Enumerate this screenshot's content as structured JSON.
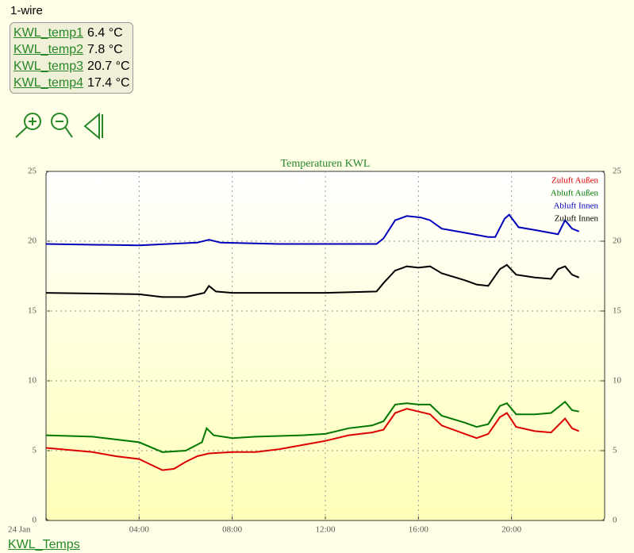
{
  "header": {
    "title": "1-wire"
  },
  "readings": [
    {
      "name": "KWL_temp1",
      "value": "6.4 °C"
    },
    {
      "name": "KWL_temp2",
      "value": "7.8 °C"
    },
    {
      "name": "KWL_temp3",
      "value": "20.7 °C"
    },
    {
      "name": "KWL_temp4",
      "value": "17.4 °C"
    }
  ],
  "footer": {
    "link": "KWL_Temps"
  },
  "chart_data": {
    "type": "line",
    "title": "Temperaturen KWL",
    "xlim": [
      0,
      24
    ],
    "xticks": [
      {
        "value": 0,
        "label": "24 Jan"
      },
      {
        "value": 4,
        "label": "04:00"
      },
      {
        "value": 8,
        "label": "08:00"
      },
      {
        "value": 12,
        "label": "12:00"
      },
      {
        "value": 16,
        "label": "16:00"
      },
      {
        "value": 20,
        "label": "20:00"
      }
    ],
    "ylim": [
      0,
      25
    ],
    "yticks": [
      0,
      5,
      10,
      15,
      20,
      25
    ],
    "y2lim": [
      0,
      25
    ],
    "y2ticks": [
      0,
      5,
      10,
      15,
      20,
      25
    ],
    "grid": true,
    "legend": "top-right",
    "series": [
      {
        "name": "Zuluft Außen",
        "color": "#dd0000",
        "x": [
          0,
          2,
          3,
          4,
          5,
          5.5,
          6,
          6.5,
          7,
          8,
          9,
          10,
          11,
          12,
          13,
          14,
          14.5,
          15,
          15.5,
          16,
          16.5,
          17,
          18,
          18.5,
          19,
          19.5,
          19.8,
          20.2,
          21,
          21.7,
          22.3,
          22.6,
          22.9
        ],
        "values": [
          5.2,
          4.9,
          4.6,
          4.4,
          3.6,
          3.7,
          4.2,
          4.6,
          4.8,
          4.9,
          4.9,
          5.1,
          5.4,
          5.7,
          6.1,
          6.3,
          6.5,
          7.7,
          8.0,
          7.8,
          7.6,
          6.8,
          6.2,
          5.9,
          6.2,
          7.4,
          7.7,
          6.7,
          6.4,
          6.3,
          7.3,
          6.6,
          6.4
        ]
      },
      {
        "name": "Abluft Außen",
        "color": "#007700",
        "x": [
          0,
          2,
          4,
          5,
          6,
          6.7,
          6.9,
          7.2,
          8,
          9,
          11,
          12,
          13,
          14,
          14.5,
          15,
          15.5,
          16,
          16.5,
          17,
          18,
          18.5,
          19,
          19.5,
          19.8,
          20.2,
          21,
          21.7,
          22.3,
          22.6,
          22.9
        ],
        "values": [
          6.1,
          6.0,
          5.6,
          4.9,
          5.0,
          5.6,
          6.6,
          6.1,
          5.9,
          6.0,
          6.1,
          6.2,
          6.6,
          6.8,
          7.1,
          8.3,
          8.4,
          8.3,
          8.3,
          7.5,
          7.0,
          6.7,
          6.9,
          8.2,
          8.4,
          7.6,
          7.6,
          7.7,
          8.5,
          7.9,
          7.8
        ]
      },
      {
        "name": "Abluft Innen",
        "color": "#0000bb",
        "x": [
          0,
          4,
          6.5,
          7,
          7.5,
          10,
          14.2,
          14.5,
          15,
          15.5,
          16.1,
          16.5,
          17,
          18,
          19,
          19.3,
          19.7,
          19.9,
          20.3,
          21,
          22,
          22.3,
          22.6,
          22.9
        ],
        "values": [
          19.8,
          19.7,
          19.9,
          20.1,
          19.9,
          19.8,
          19.8,
          20.2,
          21.5,
          21.8,
          21.7,
          21.5,
          20.9,
          20.6,
          20.3,
          20.3,
          21.6,
          21.9,
          21.0,
          20.8,
          20.5,
          21.5,
          20.9,
          20.7
        ]
      },
      {
        "name": "Zuluft Innen",
        "color": "#000000",
        "x": [
          0,
          4,
          5,
          6,
          6.8,
          7,
          7.3,
          8,
          12,
          14.2,
          14.5,
          15,
          15.5,
          16,
          16.5,
          17,
          18,
          18.5,
          19,
          19.5,
          19.8,
          20.2,
          21,
          21.7,
          22,
          22.3,
          22.6,
          22.9
        ],
        "values": [
          16.3,
          16.2,
          16.0,
          16.0,
          16.3,
          16.8,
          16.4,
          16.3,
          16.3,
          16.4,
          17.0,
          17.9,
          18.2,
          18.1,
          18.2,
          17.7,
          17.2,
          16.9,
          16.8,
          18.0,
          18.3,
          17.6,
          17.4,
          17.3,
          18.0,
          18.2,
          17.6,
          17.4
        ]
      }
    ]
  }
}
